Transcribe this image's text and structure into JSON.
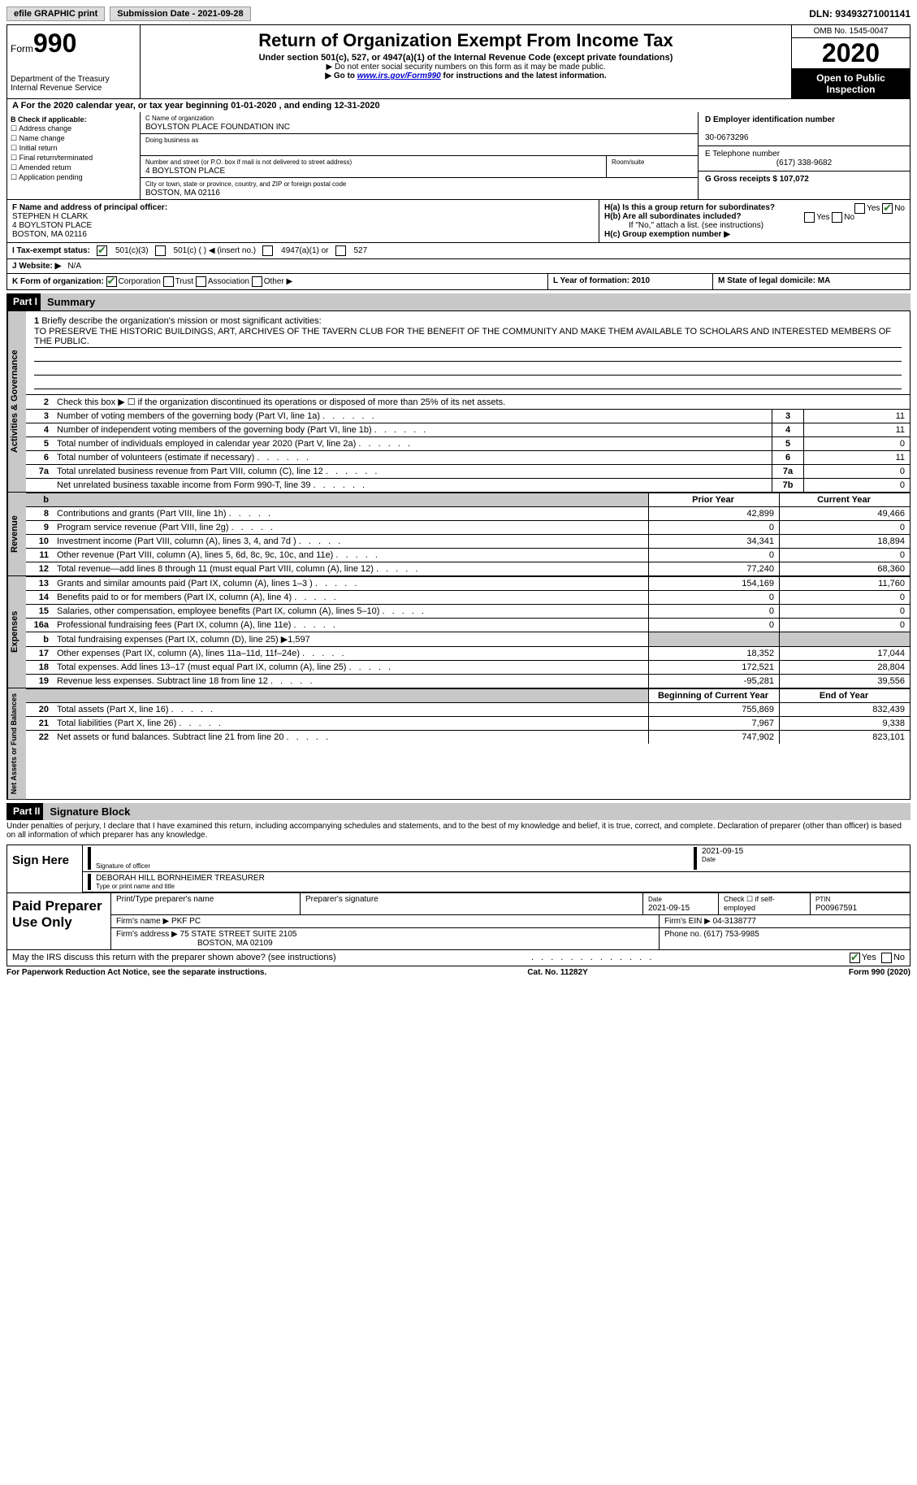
{
  "top": {
    "efile": "efile GRAPHIC print",
    "submission": "Submission Date - 2021-09-28",
    "dln": "DLN: 93493271001141"
  },
  "header": {
    "form_prefix": "Form",
    "form_number": "990",
    "dept": "Department of the Treasury\nInternal Revenue Service",
    "title": "Return of Organization Exempt From Income Tax",
    "subtitle": "Under section 501(c), 527, or 4947(a)(1) of the Internal Revenue Code (except private foundations)",
    "note1": "▶ Do not enter social security numbers on this form as it may be made public.",
    "note2_pre": "▶ Go to ",
    "note2_link": "www.irs.gov/Form990",
    "note2_post": " for instructions and the latest information.",
    "omb": "OMB No. 1545-0047",
    "year": "2020",
    "open": "Open to Public Inspection"
  },
  "taxyear": "A For the 2020 calendar year, or tax year beginning 01-01-2020     , and ending 12-31-2020",
  "colB": {
    "title": "B Check if applicable:",
    "items": [
      "Address change",
      "Name change",
      "Initial return",
      "Final return/terminated",
      "Amended return",
      "Application pending"
    ]
  },
  "colC": {
    "name_label": "C Name of organization",
    "name": "BOYLSTON PLACE FOUNDATION INC",
    "dba_label": "Doing business as",
    "addr_label": "Number and street (or P.O. box if mail is not delivered to street address)",
    "addr": "4 BOYLSTON PLACE",
    "room_label": "Room/suite",
    "city_label": "City or town, state or province, country, and ZIP or foreign postal code",
    "city": "BOSTON, MA  02116"
  },
  "colD": {
    "ein_label": "D Employer identification number",
    "ein": "30-0673296",
    "phone_label": "E Telephone number",
    "phone": "(617) 338-9682",
    "gross_label": "G Gross receipts $ 107,072"
  },
  "colF": {
    "label": "F Name and address of principal officer:",
    "name": "STEPHEN H CLARK",
    "addr1": "4 BOYLSTON PLACE",
    "addr2": "BOSTON, MA  02116"
  },
  "colH": {
    "a": "H(a)  Is this a group return for subordinates?",
    "b": "H(b)  Are all subordinates included?",
    "note": "If \"No,\" attach a list. (see instructions)",
    "c": "H(c)  Group exemption number ▶"
  },
  "statusI": {
    "label": "I   Tax-exempt status:",
    "opts": [
      "501(c)(3)",
      "501(c) (  ) ◀ (insert no.)",
      "4947(a)(1) or",
      "527"
    ]
  },
  "websiteJ": {
    "label": "J   Website: ▶",
    "val": "N/A"
  },
  "formK": {
    "label": "K Form of organization:",
    "opts": [
      "Corporation",
      "Trust",
      "Association",
      "Other ▶"
    ]
  },
  "formL": "L Year of formation: 2010",
  "formM": "M State of legal domicile: MA",
  "part1": {
    "hdr": "Part I",
    "title": "Summary"
  },
  "mission": {
    "ln": "1",
    "label": "Briefly describe the organization's mission or most significant activities:",
    "text": "TO PRESERVE THE HISTORIC BUILDINGS, ART, ARCHIVES OF THE TAVERN CLUB FOR THE BENEFIT OF THE COMMUNITY AND MAKE THEM AVAILABLE TO SCHOLARS AND INTERESTED MEMBERS OF THE PUBLIC."
  },
  "gov_lines": {
    "l2": "Check this box ▶ ☐  if the organization discontinued its operations or disposed of more than 25% of its net assets.",
    "rows": [
      {
        "n": "3",
        "t": "Number of voting members of the governing body (Part VI, line 1a)",
        "box": "3",
        "v": "11"
      },
      {
        "n": "4",
        "t": "Number of independent voting members of the governing body (Part VI, line 1b)",
        "box": "4",
        "v": "11"
      },
      {
        "n": "5",
        "t": "Total number of individuals employed in calendar year 2020 (Part V, line 2a)",
        "box": "5",
        "v": "0"
      },
      {
        "n": "6",
        "t": "Total number of volunteers (estimate if necessary)",
        "box": "6",
        "v": "11"
      },
      {
        "n": "7a",
        "t": "Total unrelated business revenue from Part VIII, column (C), line 12",
        "box": "7a",
        "v": "0"
      },
      {
        "n": "",
        "t": "Net unrelated business taxable income from Form 990-T, line 39",
        "box": "7b",
        "v": "0"
      }
    ]
  },
  "prior_cur_hdr": {
    "b": "b",
    "prior": "Prior Year",
    "cur": "Current Year"
  },
  "revenue": [
    {
      "n": "8",
      "t": "Contributions and grants (Part VIII, line 1h)",
      "p": "42,899",
      "c": "49,466"
    },
    {
      "n": "9",
      "t": "Program service revenue (Part VIII, line 2g)",
      "p": "0",
      "c": "0"
    },
    {
      "n": "10",
      "t": "Investment income (Part VIII, column (A), lines 3, 4, and 7d )",
      "p": "34,341",
      "c": "18,894"
    },
    {
      "n": "11",
      "t": "Other revenue (Part VIII, column (A), lines 5, 6d, 8c, 9c, 10c, and 11e)",
      "p": "0",
      "c": "0"
    },
    {
      "n": "12",
      "t": "Total revenue—add lines 8 through 11 (must equal Part VIII, column (A), line 12)",
      "p": "77,240",
      "c": "68,360"
    }
  ],
  "expenses": [
    {
      "n": "13",
      "t": "Grants and similar amounts paid (Part IX, column (A), lines 1–3 )",
      "p": "154,169",
      "c": "11,760"
    },
    {
      "n": "14",
      "t": "Benefits paid to or for members (Part IX, column (A), line 4)",
      "p": "0",
      "c": "0"
    },
    {
      "n": "15",
      "t": "Salaries, other compensation, employee benefits (Part IX, column (A), lines 5–10)",
      "p": "0",
      "c": "0"
    },
    {
      "n": "16a",
      "t": "Professional fundraising fees (Part IX, column (A), line 11e)",
      "p": "0",
      "c": "0"
    },
    {
      "n": "b",
      "t": "Total fundraising expenses (Part IX, column (D), line 25) ▶1,597",
      "p": "",
      "c": "",
      "shade": true
    },
    {
      "n": "17",
      "t": "Other expenses (Part IX, column (A), lines 11a–11d, 11f–24e)",
      "p": "18,352",
      "c": "17,044"
    },
    {
      "n": "18",
      "t": "Total expenses. Add lines 13–17 (must equal Part IX, column (A), line 25)",
      "p": "172,521",
      "c": "28,804"
    },
    {
      "n": "19",
      "t": "Revenue less expenses. Subtract line 18 from line 12",
      "p": "-95,281",
      "c": "39,556"
    }
  ],
  "net_hdr": {
    "beg": "Beginning of Current Year",
    "end": "End of Year"
  },
  "netassets": [
    {
      "n": "20",
      "t": "Total assets (Part X, line 16)",
      "p": "755,869",
      "c": "832,439"
    },
    {
      "n": "21",
      "t": "Total liabilities (Part X, line 26)",
      "p": "7,967",
      "c": "9,338"
    },
    {
      "n": "22",
      "t": "Net assets or fund balances. Subtract line 21 from line 20",
      "p": "747,902",
      "c": "823,101"
    }
  ],
  "part2": {
    "hdr": "Part II",
    "title": "Signature Block"
  },
  "penalties": "Under penalties of perjury, I declare that I have examined this return, including accompanying schedules and statements, and to the best of my knowledge and belief, it is true, correct, and complete. Declaration of preparer (other than officer) is based on all information of which preparer has any knowledge.",
  "sign": {
    "here": "Sign Here",
    "sig_label": "Signature of officer",
    "date_label": "Date",
    "date": "2021-09-15",
    "name": "DEBORAH HILL BORNHEIMER  TREASURER",
    "name_label": "Type or print name and title"
  },
  "prep": {
    "label": "Paid Preparer Use Only",
    "r1": {
      "a": "Print/Type preparer's name",
      "b": "Preparer's signature",
      "c": "Date",
      "c2": "2021-09-15",
      "d": "Check ☐ if self-employed",
      "e": "PTIN",
      "e2": "P00967591"
    },
    "r2": {
      "a": "Firm's name    ▶",
      "a2": "PKF PC",
      "b": "Firm's EIN ▶ 04-3138777"
    },
    "r3": {
      "a": "Firm's address ▶",
      "a2": "75 STATE STREET SUITE 2105",
      "a3": "BOSTON, MA  02109",
      "b": "Phone no. (617) 753-9985"
    }
  },
  "discuss": "May the IRS discuss this return with the preparer shown above? (see instructions)",
  "footer": {
    "left": "For Paperwork Reduction Act Notice, see the separate instructions.",
    "mid": "Cat. No. 11282Y",
    "right": "Form 990 (2020)"
  },
  "labels": {
    "yes": "Yes",
    "no": "No"
  },
  "vert": {
    "gov": "Activities & Governance",
    "rev": "Revenue",
    "exp": "Expenses",
    "net": "Net Assets or Fund Balances"
  }
}
